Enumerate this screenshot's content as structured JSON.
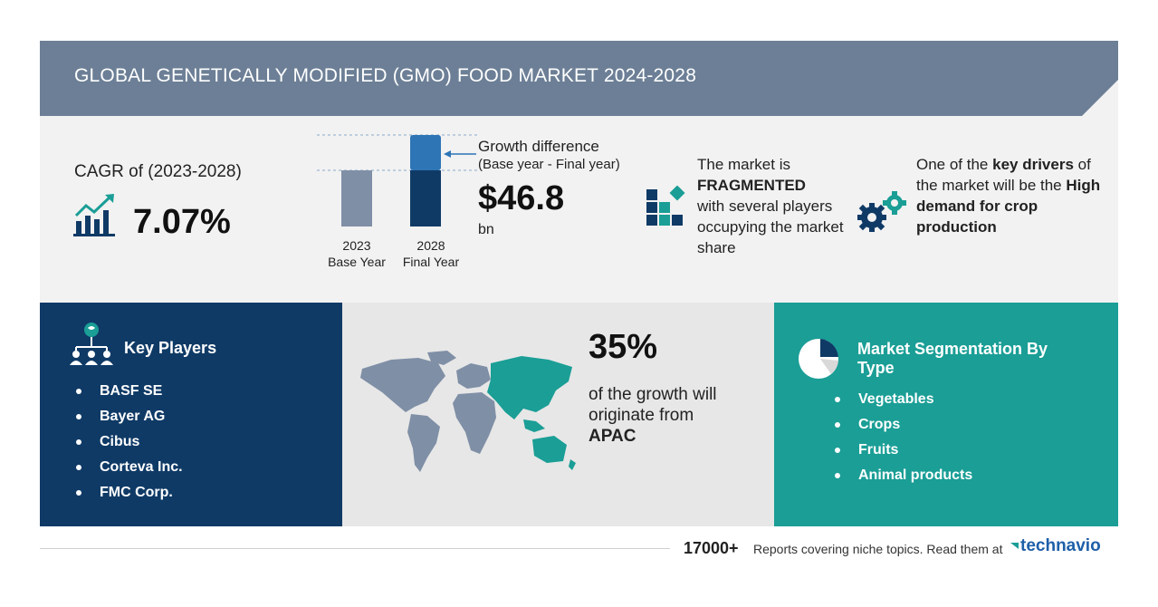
{
  "header": {
    "title": "GLOBAL GENETICALLY MODIFIED (GMO) FOOD MARKET 2024-2028"
  },
  "cagr": {
    "label": "CAGR of (2023-2028)",
    "value": "7.07%",
    "icon": "growth-chart-icon"
  },
  "growth": {
    "base_year": "2023",
    "base_label": "Base Year",
    "final_year": "2028",
    "final_label": "Final Year",
    "title": "Growth difference",
    "subtitle": "(Base year - Final year)",
    "value": "$46.8",
    "unit": "bn"
  },
  "fragmented": {
    "line1": "The market is",
    "bold": "FRAGMENTED",
    "line2": "with several players occupying the market share",
    "icon": "blocks-icon"
  },
  "drivers": {
    "line1": "One of the ",
    "bold1": "key drivers",
    "line2": " of the market will be the ",
    "bold2": "High demand for crop production",
    "icon": "gears-icon"
  },
  "key_players": {
    "title": "Key Players",
    "icon": "network-people-icon",
    "items": [
      "BASF SE",
      "Bayer AG",
      "Cibus",
      "Corteva Inc.",
      "FMC Corp."
    ]
  },
  "region": {
    "share": "35%",
    "text": "of the growth will originate from",
    "region": "APAC",
    "icon": "world-map-icon"
  },
  "segmentation": {
    "title": "Market Segmentation By Type",
    "icon": "pie-chart-icon",
    "items": [
      "Vegetables",
      "Crops",
      "Fruits",
      "Animal products"
    ]
  },
  "footer": {
    "count": "17000+",
    "text": "Reports covering niche topics. Read them at",
    "brand": "technavio"
  },
  "colors": {
    "header": "#6c7f96",
    "navy": "#0f3a66",
    "teal": "#1a9e96",
    "bar_base": "#7f8fa6",
    "bar_final_top": "#2e75b6",
    "bar_final_bottom": "#0f3a66"
  }
}
